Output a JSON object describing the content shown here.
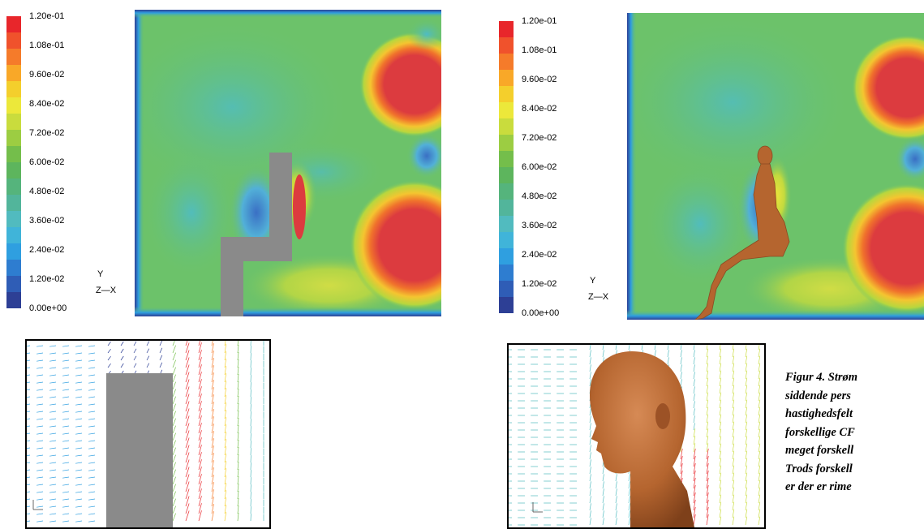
{
  "figure": {
    "legend": {
      "ticks": [
        "1.20e-01",
        "1.08e-01",
        "9.60e-02",
        "8.40e-02",
        "7.20e-02",
        "6.00e-02",
        "4.80e-02",
        "3.60e-02",
        "2.40e-02",
        "1.20e-02",
        "0.00e+00"
      ],
      "colors": [
        "#e8262b",
        "#f0522c",
        "#f57b2a",
        "#f9a828",
        "#f4cf2c",
        "#ece83a",
        "#c9dc3d",
        "#9ccd42",
        "#74be4b",
        "#5db55d",
        "#55b47c",
        "#52b59b",
        "#51bbbf",
        "#40b4d9",
        "#2f9fe0",
        "#2e7dd0",
        "#2f5db6",
        "#2d3f95"
      ],
      "axis_y": "Y",
      "axis_zx": "Z—X"
    },
    "panels": {
      "top_left": {
        "name": "contour-box-model"
      },
      "top_right": {
        "name": "contour-manikin-model"
      },
      "bottom_left": {
        "name": "vector-box-model"
      },
      "bottom_right": {
        "name": "vector-manikin-model"
      }
    },
    "caption_lines": [
      "Figur 4. Strøm",
      "siddende pers",
      "hastighedsfelt",
      "forskellige CF",
      "meget forskell",
      "Trods forskell",
      "er der er rime",
      "..."
    ],
    "colors": {
      "field_green": "#6cc26a",
      "hot_red": "#dc3b3f",
      "solid_gray": "#8a8a8a",
      "skin": "#b5652f"
    }
  }
}
